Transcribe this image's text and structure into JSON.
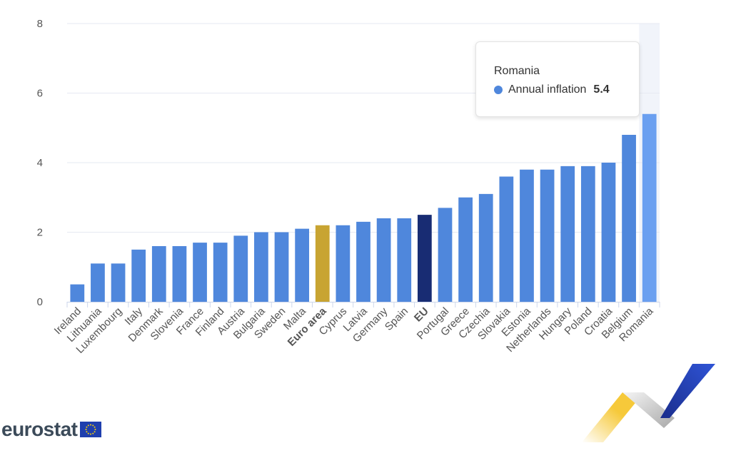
{
  "chart_data": {
    "type": "bar",
    "categories": [
      "Ireland",
      "Lithuania",
      "Luxembourg",
      "Italy",
      "Denmark",
      "Slovenia",
      "France",
      "Finland",
      "Austria",
      "Bulgaria",
      "Sweden",
      "Malta",
      "Euro area",
      "Cyprus",
      "Latvia",
      "Germany",
      "Spain",
      "EU",
      "Portugal",
      "Greece",
      "Czechia",
      "Slovakia",
      "Estonia",
      "Netherlands",
      "Hungary",
      "Poland",
      "Croatia",
      "Belgium",
      "Romania"
    ],
    "series": [
      {
        "name": "Annual inflation",
        "values": [
          0.5,
          1.1,
          1.1,
          1.5,
          1.6,
          1.6,
          1.7,
          1.7,
          1.9,
          2.0,
          2.0,
          2.1,
          2.2,
          2.2,
          2.3,
          2.4,
          2.4,
          2.5,
          2.7,
          3.0,
          3.1,
          3.6,
          3.8,
          3.8,
          3.9,
          3.9,
          4.0,
          4.8,
          5.4
        ]
      }
    ],
    "ylim": [
      0,
      8
    ],
    "yticks": [
      0,
      2,
      4,
      6,
      8
    ],
    "highlight_categories": [
      "Euro area",
      "EU"
    ],
    "hovered_category": "Romania",
    "grid": true,
    "colors": {
      "default": "#4f87dc",
      "euro_area": "#c8a432",
      "eu": "#182c73",
      "hovered": "#6a9ff0",
      "hover_band": "#f1f4fa",
      "grid": "#e6e9f2",
      "axis": "#ccd6eb"
    }
  },
  "tooltip": {
    "title": "Romania",
    "series_label": "Annual inflation",
    "value": "5.4"
  },
  "logo": {
    "text": "eurostat"
  }
}
